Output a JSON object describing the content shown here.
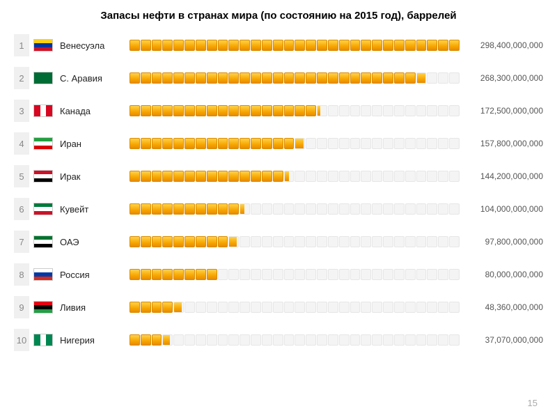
{
  "title": "Запасы нефти в странах мира (по состоянию на 2015 год), баррелей",
  "page_number": "15",
  "chart": {
    "type": "bar",
    "segments_total": 30,
    "segment_color_full": "#f7a600",
    "segment_color_empty": "#f4f4f4",
    "segment_border_full": "#d98a00",
    "segment_border_empty": "#e6e6e6",
    "background_color": "#ffffff",
    "rank_bg": "#f0f0f0",
    "title_fontsize": 15,
    "label_fontsize": 13,
    "value_fontsize": 12,
    "value_color": "#555555",
    "max_value": 298400000000
  },
  "rows": [
    {
      "rank": "1",
      "country": "Венесуэла",
      "value_raw": 298400000000,
      "value": "298,400,000,000",
      "flag_dir": "h",
      "flag_colors": [
        "#fcd116",
        "#0033a0",
        "#ce1126"
      ]
    },
    {
      "rank": "2",
      "country": "С. Аравия",
      "value_raw": 268300000000,
      "value": "268,300,000,000",
      "flag_dir": "solid",
      "flag_colors": [
        "#006c35"
      ]
    },
    {
      "rank": "3",
      "country": "Канада",
      "value_raw": 172500000000,
      "value": "172,500,000,000",
      "flag_dir": "v",
      "flag_colors": [
        "#d80621",
        "#ffffff",
        "#d80621"
      ]
    },
    {
      "rank": "4",
      "country": "Иран",
      "value_raw": 157800000000,
      "value": "157,800,000,000",
      "flag_dir": "h",
      "flag_colors": [
        "#239f40",
        "#ffffff",
        "#da0000"
      ]
    },
    {
      "rank": "5",
      "country": "Ирак",
      "value_raw": 144200000000,
      "value": "144,200,000,000",
      "flag_dir": "h",
      "flag_colors": [
        "#ce1126",
        "#ffffff",
        "#000000"
      ]
    },
    {
      "rank": "6",
      "country": "Кувейт",
      "value_raw": 104000000000,
      "value": "104,000,000,000",
      "flag_dir": "h",
      "flag_colors": [
        "#007a3d",
        "#ffffff",
        "#ce1126"
      ]
    },
    {
      "rank": "7",
      "country": "ОАЭ",
      "value_raw": 97800000000,
      "value": "97,800,000,000",
      "flag_dir": "h",
      "flag_colors": [
        "#00732f",
        "#ffffff",
        "#000000"
      ]
    },
    {
      "rank": "8",
      "country": "Россия",
      "value_raw": 80000000000,
      "value": "80,000,000,000",
      "flag_dir": "h",
      "flag_colors": [
        "#ffffff",
        "#0039a6",
        "#d52b1e"
      ]
    },
    {
      "rank": "9",
      "country": "Ливия",
      "value_raw": 48360000000,
      "value": "48,360,000,000",
      "flag_dir": "h",
      "flag_colors": [
        "#e70013",
        "#000000",
        "#239e46"
      ]
    },
    {
      "rank": "10",
      "country": "Нигерия",
      "value_raw": 37070000000,
      "value": "37,070,000,000",
      "flag_dir": "v",
      "flag_colors": [
        "#008751",
        "#ffffff",
        "#008751"
      ]
    }
  ]
}
